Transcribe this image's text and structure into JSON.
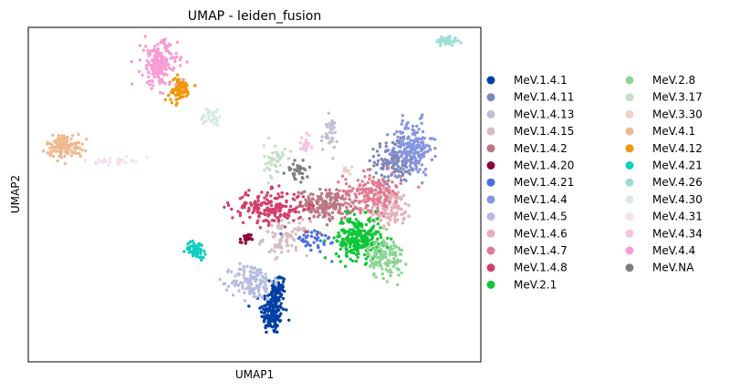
{
  "chart_data": {
    "type": "scatter",
    "title": "UMAP - leiden_fusion",
    "xlabel": "UMAP1",
    "ylabel": "UMAP2",
    "xlim": [
      0,
      100
    ],
    "ylim": [
      0,
      100
    ],
    "ticks": "none",
    "grid": false,
    "legend_position": "right, two columns",
    "series": [
      {
        "name": "MeV.1.4.1",
        "color": "#023fa5",
        "clusters": [
          {
            "cx": 54.0,
            "cy": 15.0,
            "sx": 1.3,
            "sy": 3.5,
            "n": 160
          },
          {
            "cx": 55.2,
            "cy": 22.0,
            "sx": 0.8,
            "sy": 2.2,
            "n": 60
          }
        ]
      },
      {
        "name": "MeV.1.4.11",
        "color": "#7d87b9",
        "cy": 60.0,
        "cx": 81.0,
        "sx": 2.2,
        "sy": 3.0,
        "n": 140
      },
      {
        "name": "MeV.1.4.13",
        "color": "#bec1d4",
        "cx": 66.5,
        "cy": 68.0,
        "sx": 0.9,
        "sy": 2.5,
        "n": 40
      },
      {
        "name": "MeV.1.4.15",
        "color": "#d6bcc0",
        "cx": 57.0,
        "cy": 37.0,
        "sx": 2.5,
        "sy": 2.5,
        "n": 80
      },
      {
        "name": "MeV.1.4.2",
        "color": "#bb7784",
        "cx": 66.0,
        "cy": 47.0,
        "sx": 3.0,
        "sy": 2.2,
        "n": 180
      },
      {
        "name": "MeV.1.4.20",
        "color": "#8e063b",
        "cx": 48.0,
        "cy": 36.5,
        "sx": 0.6,
        "sy": 0.9,
        "n": 22
      },
      {
        "name": "MeV.1.4.21",
        "color": "#4a6fe3",
        "cx": 63.0,
        "cy": 36.0,
        "sx": 3.0,
        "sy": 2.0,
        "n": 40
      },
      {
        "name": "MeV.1.4.4",
        "color": "#8595e1",
        "cx": 85.0,
        "cy": 64.0,
        "sx": 2.2,
        "sy": 4.0,
        "n": 170
      },
      {
        "name": "MeV.1.4.5",
        "color": "#b5bbe3",
        "cx": 49.5,
        "cy": 24.0,
        "sx": 2.3,
        "sy": 2.6,
        "n": 130
      },
      {
        "name": "MeV.1.4.6",
        "color": "#e6afb9",
        "cx": 80.0,
        "cy": 46.0,
        "sx": 2.5,
        "sy": 2.8,
        "n": 120
      },
      {
        "name": "MeV.1.4.7",
        "color": "#e07b91",
        "cx": 76.0,
        "cy": 51.0,
        "sx": 3.2,
        "sy": 2.8,
        "n": 170
      },
      {
        "name": "MeV.1.4.8",
        "color": "#d33f6a",
        "cx": 53.0,
        "cy": 46.0,
        "sx": 4.0,
        "sy": 2.5,
        "n": 190
      },
      {
        "name": "MeV.2.1",
        "color": "#11c638",
        "cx": 73.0,
        "cy": 37.0,
        "sx": 2.5,
        "sy": 3.2,
        "n": 260
      },
      {
        "name": "MeV.2.8",
        "color": "#8dd593",
        "cx": 79.0,
        "cy": 31.0,
        "sx": 2.0,
        "sy": 3.0,
        "n": 130
      },
      {
        "name": "MeV.3.17",
        "color": "#c6dec7",
        "cx": 54.5,
        "cy": 60.0,
        "sx": 1.2,
        "sy": 2.5,
        "n": 45
      },
      {
        "name": "MeV.3.30",
        "color": "#ead3c6",
        "cx": 70.5,
        "cy": 57.5,
        "sx": 0.5,
        "sy": 0.7,
        "n": 10
      },
      {
        "name": "MeV.4.1",
        "color": "#f0b98d",
        "cx": 8.0,
        "cy": 64.5,
        "sx": 2.0,
        "sy": 1.8,
        "n": 120
      },
      {
        "name": "MeV.4.12",
        "color": "#ef9708",
        "cx": 33.5,
        "cy": 81.5,
        "sx": 1.2,
        "sy": 1.8,
        "n": 80
      },
      {
        "name": "MeV.4.21",
        "color": "#0fcfc0",
        "cx": 37.0,
        "cy": 33.5,
        "sx": 1.1,
        "sy": 1.2,
        "n": 60
      },
      {
        "name": "MeV.4.26",
        "color": "#9cded6",
        "cx": 92.5,
        "cy": 96.0,
        "sx": 1.2,
        "sy": 0.7,
        "n": 45
      },
      {
        "name": "MeV.4.30",
        "color": "#d5eae7",
        "cx": 40.5,
        "cy": 73.5,
        "sx": 1.2,
        "sy": 1.5,
        "n": 35
      },
      {
        "name": "MeV.4.31",
        "color": "#f3e1eb",
        "cx": 19.0,
        "cy": 60.0,
        "sx": 2.0,
        "sy": 0.5,
        "n": 35
      },
      {
        "name": "MeV.4.34",
        "color": "#f6c4e1",
        "cx": 61.0,
        "cy": 65.0,
        "sx": 0.8,
        "sy": 1.2,
        "n": 22
      },
      {
        "name": "MeV.4.4",
        "color": "#f79cd4",
        "cx": 29.0,
        "cy": 89.0,
        "sx": 2.0,
        "sy": 3.5,
        "n": 200
      },
      {
        "name": "MeV.NA",
        "color": "#7f7f7f",
        "cx": 59.5,
        "cy": 57.0,
        "sx": 1.2,
        "sy": 1.6,
        "n": 35
      }
    ]
  }
}
